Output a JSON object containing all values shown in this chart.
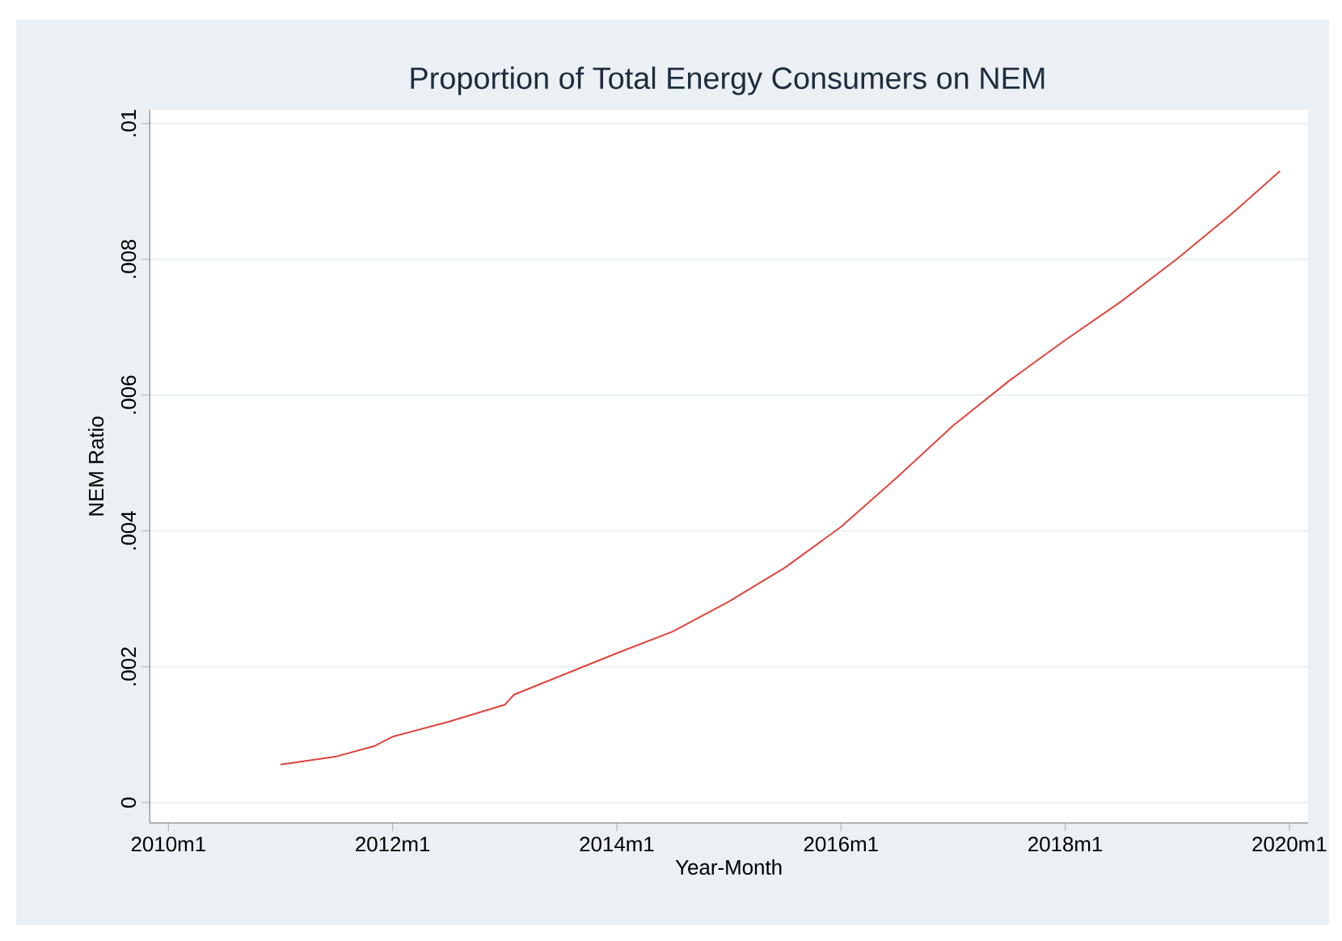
{
  "chart_data": {
    "type": "line",
    "title": "Proportion of Total Energy Consumers on NEM",
    "xlabel": "Year-Month",
    "ylabel": "NEM Ratio",
    "x": [
      "2011-01",
      "2011-07",
      "2011-11",
      "2012-01",
      "2012-07",
      "2013-01",
      "2013-02",
      "2014-01",
      "2014-07",
      "2015-01",
      "2015-07",
      "2016-01",
      "2016-07",
      "2017-01",
      "2017-07",
      "2018-01",
      "2018-07",
      "2019-01",
      "2019-07",
      "2019-12"
    ],
    "series": [
      {
        "color": "#e0443c",
        "values": [
          0.00056,
          0.00068,
          0.00083,
          0.00097,
          0.00119,
          0.00144,
          0.00159,
          0.0022,
          0.00252,
          0.00296,
          0.00346,
          0.00406,
          0.00479,
          0.00555,
          0.00621,
          0.00681,
          0.00738,
          0.00801,
          0.00869,
          0.0093
        ]
      }
    ],
    "xlim": [
      "2009-11",
      "2020-03"
    ],
    "ylim": [
      -0.0003,
      0.0102
    ],
    "xticks": [
      {
        "value": "2010-01",
        "label": "2010m1"
      },
      {
        "value": "2012-01",
        "label": "2012m1"
      },
      {
        "value": "2014-01",
        "label": "2014m1"
      },
      {
        "value": "2016-01",
        "label": "2016m1"
      },
      {
        "value": "2018-01",
        "label": "2018m1"
      },
      {
        "value": "2020-01",
        "label": "2020m1"
      }
    ],
    "yticks": [
      0,
      {
        "value": 0.002,
        "label": ".002"
      },
      {
        "value": 0.004,
        "label": ".004"
      },
      {
        "value": 0.006,
        "label": ".006"
      },
      {
        "value": 0.008,
        "label": ".008"
      },
      {
        "value": 0.01,
        "label": ".01"
      }
    ],
    "grid": "y",
    "marker": "none",
    "line_style": "solid"
  }
}
